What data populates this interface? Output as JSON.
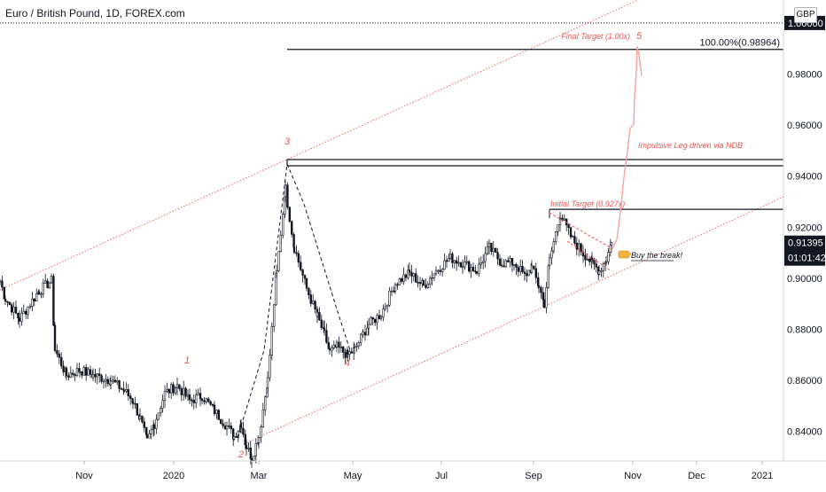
{
  "header": {
    "title": "Euro / British Pound, 1D, FOREX.com",
    "currency": "GBP"
  },
  "chart_data": {
    "type": "candlestick",
    "x_tick_labels": [
      "Nov",
      "2020",
      "Mar",
      "May",
      "Jul",
      "Sep",
      "Nov",
      "Dec",
      "2021"
    ],
    "y_ticks": [
      "0.84000",
      "0.86000",
      "0.88000",
      "0.90000",
      "0.92000",
      "0.94000",
      "0.96000",
      "0.98000"
    ],
    "ylim": [
      0.818,
      1.009
    ],
    "series": {
      "anchors": [
        [
          "Oct",
          0.899
        ],
        [
          "Oct",
          0.892
        ],
        [
          "Oct",
          0.884
        ],
        [
          "Oct",
          0.895
        ],
        [
          "Oct",
          0.899
        ],
        [
          "Oct",
          0.872
        ],
        [
          "Oct",
          0.862
        ],
        [
          "Nov",
          0.864
        ],
        [
          "Nov",
          0.862
        ],
        [
          "Nov",
          0.86
        ],
        [
          "Nov",
          0.856
        ],
        [
          "Dec",
          0.852
        ],
        [
          "Dec",
          0.845
        ],
        [
          "Dec",
          0.836
        ],
        [
          "Dec",
          0.843
        ],
        [
          "Dec",
          0.855
        ],
        [
          "2020",
          0.858
        ],
        [
          "Jan",
          0.852
        ],
        [
          "Jan",
          0.854
        ],
        [
          "Jan",
          0.848
        ],
        [
          "Feb",
          0.842
        ],
        [
          "Feb",
          0.838
        ],
        [
          "Feb",
          0.843
        ],
        [
          "Feb",
          0.834
        ],
        [
          "Feb",
          0.83
        ],
        [
          "Mar",
          0.838
        ],
        [
          "Mar",
          0.86
        ],
        [
          "Mar",
          0.902
        ],
        [
          "Mar",
          0.935
        ],
        [
          "Mar",
          0.912
        ],
        [
          "Mar",
          0.896
        ],
        [
          "Apr",
          0.885
        ],
        [
          "Apr",
          0.878
        ],
        [
          "Apr",
          0.871
        ],
        [
          "Apr",
          0.873
        ],
        [
          "Apr",
          0.87
        ],
        [
          "May",
          0.872
        ],
        [
          "May",
          0.882
        ],
        [
          "May",
          0.886
        ],
        [
          "May",
          0.898
        ],
        [
          "Jun",
          0.902
        ],
        [
          "Jun",
          0.897
        ],
        [
          "Jun",
          0.903
        ],
        [
          "Jun",
          0.908
        ],
        [
          "Jul",
          0.906
        ],
        [
          "Jul",
          0.903
        ],
        [
          "Jul",
          0.912
        ],
        [
          "Jul",
          0.906
        ],
        [
          "Aug",
          0.906
        ],
        [
          "Aug",
          0.901
        ],
        [
          "Aug",
          0.904
        ],
        [
          "Aug",
          0.897
        ],
        [
          "Sep",
          0.89
        ],
        [
          "Sep",
          0.907
        ],
        [
          "Sep",
          0.925
        ],
        [
          "Sep",
          0.915
        ],
        [
          "Sep",
          0.91
        ],
        [
          "Oct",
          0.906
        ],
        [
          "Oct",
          0.903
        ],
        [
          "Oct",
          0.9075
        ],
        [
          "Oct",
          0.9139
        ]
      ]
    },
    "last_price": "0.91395",
    "countdown": "01:01:42",
    "price_line_label": "1.00000",
    "levels": [
      {
        "label": "100.00%(0.98964)",
        "value": 0.98964
      }
    ],
    "wave_labels": [
      "1",
      "2",
      "3",
      "4",
      "5"
    ],
    "annotations": {
      "final_target": "Final Target (1.00x)",
      "initial_target": "Initial Target (0.927x)",
      "impulsive_leg": "Impulsive Leg driven via NDB",
      "buy_break": "Buy the break!"
    },
    "colors": {
      "candle": "#131722",
      "annotation": "#ef5350",
      "projection": "#f7a1a1",
      "channel": "#ef5350",
      "label_bg": "#131722",
      "hand": "#f5b041"
    }
  }
}
